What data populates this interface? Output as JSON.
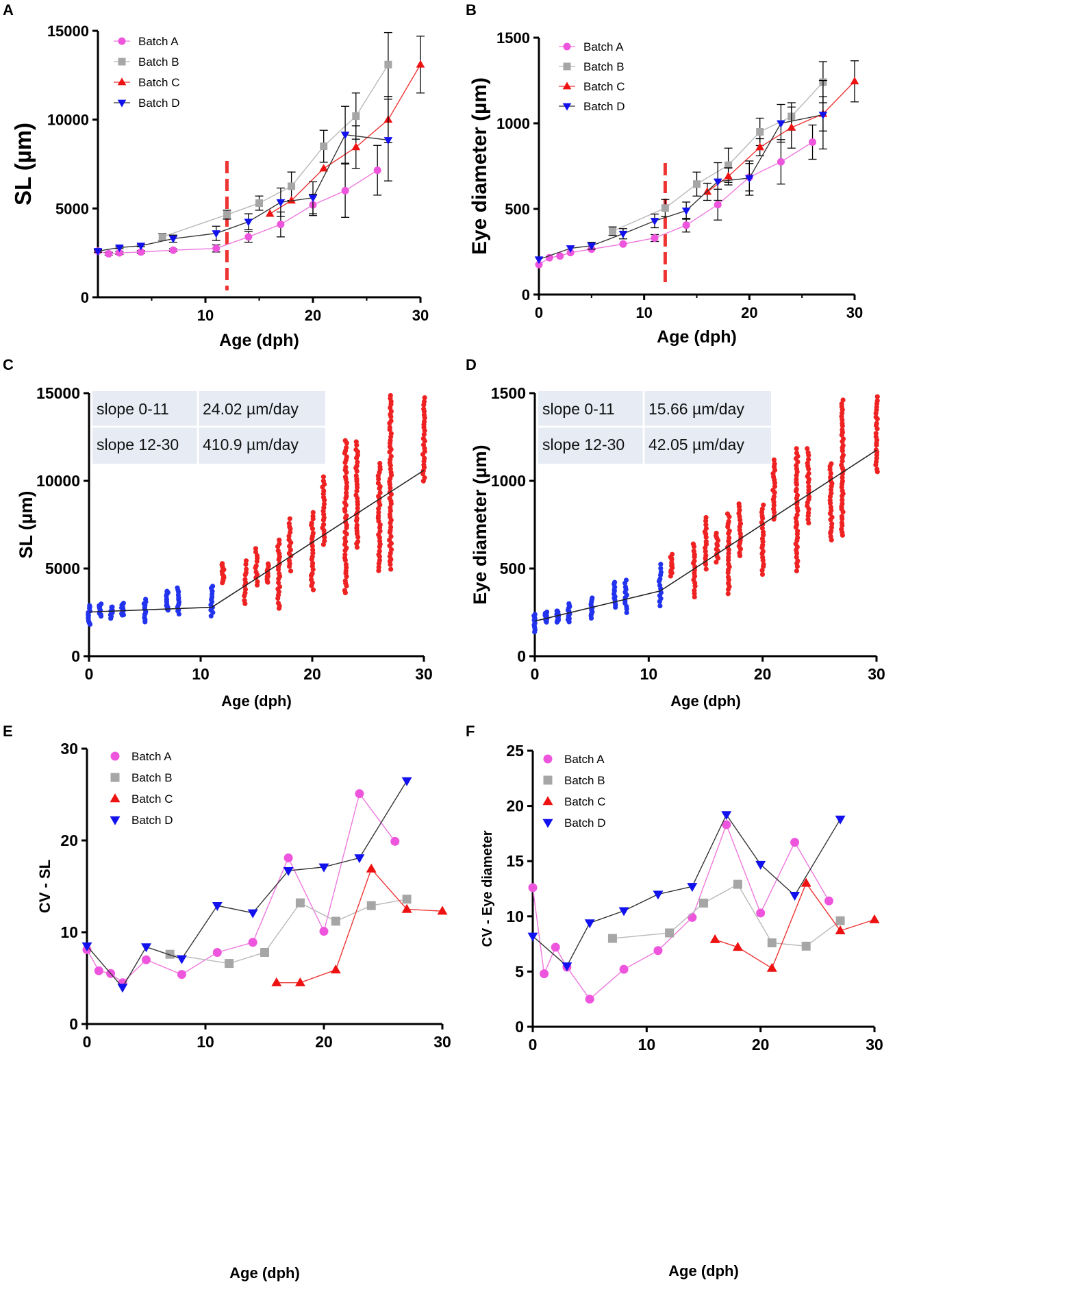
{
  "colors": {
    "a": "#ee55dd",
    "b": "#a6a6a6",
    "c": "#ee1111",
    "d": "#1111ee",
    "scatter_early": "#2233ee",
    "scatter_late": "#ee2222",
    "table_bg": "#e6ebf4",
    "vline": "#ee3333"
  },
  "legend_labels": [
    "Batch A",
    "Batch B",
    "Batch C",
    "Batch D"
  ],
  "chart_data": [
    {
      "panel": "A",
      "type": "line",
      "xlabel": "Age (dph)",
      "ylabel": "SL (µm)",
      "xlim": [
        0,
        30
      ],
      "ylim": [
        0,
        15000
      ],
      "xticks": [
        "10",
        "20",
        "30"
      ],
      "yticks": [
        "0",
        "5000",
        "10000",
        "15000"
      ],
      "vline_x": 12,
      "series": [
        {
          "name": "Batch A",
          "x": [
            0,
            1,
            2,
            4,
            7,
            11,
            14,
            17,
            20,
            23,
            26
          ],
          "y": [
            2600,
            2450,
            2500,
            2550,
            2650,
            2750,
            3400,
            4100,
            5200,
            6000,
            7150
          ],
          "err": [
            80,
            80,
            80,
            80,
            80,
            200,
            300,
            700,
            600,
            1500,
            1400
          ]
        },
        {
          "name": "Batch B",
          "x": [
            6,
            12,
            15,
            18,
            21,
            24,
            27
          ],
          "y": [
            3400,
            4650,
            5300,
            6250,
            8500,
            10200,
            13100
          ],
          "err": [
            200,
            250,
            400,
            800,
            900,
            1300,
            1800
          ]
        },
        {
          "name": "Batch C",
          "x": [
            16,
            18,
            21,
            24,
            27,
            30
          ],
          "y": [
            4700,
            5450,
            7250,
            8450,
            10000,
            13100
          ],
          "err": [
            0,
            0,
            0,
            1200,
            1300,
            1600
          ]
        },
        {
          "name": "Batch D",
          "x": [
            0,
            2,
            4,
            7,
            11,
            14,
            17,
            20,
            23,
            27
          ],
          "y": [
            2600,
            2800,
            2900,
            3300,
            3600,
            4250,
            5350,
            5600,
            9150,
            8850
          ],
          "err": [
            60,
            60,
            60,
            200,
            400,
            450,
            800,
            900,
            1600,
            2300
          ]
        }
      ]
    },
    {
      "panel": "B",
      "type": "line",
      "xlabel": "Age (dph)",
      "ylabel": "Eye diameter (µm)",
      "xlim": [
        0,
        30
      ],
      "ylim": [
        0,
        1500
      ],
      "xticks": [
        "0",
        "10",
        "20",
        "30"
      ],
      "yticks": [
        "0",
        "500",
        "1000",
        "1500"
      ],
      "vline_x": 12,
      "series": [
        {
          "name": "Batch A",
          "x": [
            0,
            1,
            2,
            3,
            5,
            8,
            11,
            14,
            17,
            20,
            23,
            26
          ],
          "y": [
            175,
            215,
            225,
            245,
            265,
            295,
            330,
            405,
            525,
            685,
            775,
            890
          ],
          "err": [
            0,
            0,
            0,
            0,
            0,
            0,
            20,
            40,
            90,
            80,
            130,
            100
          ]
        },
        {
          "name": "Batch B",
          "x": [
            7,
            12,
            15,
            18,
            21,
            24,
            27
          ],
          "y": [
            370,
            505,
            645,
            755,
            950,
            1040,
            1240
          ],
          "err": [
            25,
            50,
            70,
            100,
            80,
            80,
            120
          ]
        },
        {
          "name": "Batch C",
          "x": [
            16,
            18,
            21,
            24,
            27,
            30
          ],
          "y": [
            600,
            690,
            860,
            975,
            1055,
            1245
          ],
          "err": [
            50,
            50,
            50,
            120,
            100,
            120
          ]
        },
        {
          "name": "Batch D",
          "x": [
            0,
            3,
            5,
            8,
            11,
            14,
            17,
            20,
            23,
            27
          ],
          "y": [
            205,
            270,
            285,
            355,
            430,
            490,
            660,
            680,
            1000,
            1050
          ],
          "err": [
            0,
            0,
            20,
            30,
            40,
            50,
            110,
            100,
            110,
            200
          ]
        }
      ]
    },
    {
      "panel": "C",
      "type": "scatter",
      "xlabel": "Age (dph)",
      "ylabel": "SL (µm)",
      "xlim": [
        0,
        30
      ],
      "ylim": [
        0,
        15000
      ],
      "xticks": [
        "0",
        "10",
        "20",
        "30"
      ],
      "yticks": [
        "0",
        "5000",
        "10000",
        "15000"
      ],
      "table": [
        [
          "slope 0-11",
          "24.02 µm/day"
        ],
        [
          "slope 12-30",
          "410.9  µm/day"
        ]
      ],
      "fit": {
        "x": [
          0,
          11,
          30
        ],
        "y": [
          2520,
          2790,
          10600
        ]
      },
      "columns": [
        {
          "x": 0,
          "lo": 1800,
          "hi": 2900
        },
        {
          "x": 1,
          "lo": 2300,
          "hi": 2950
        },
        {
          "x": 2,
          "lo": 2200,
          "hi": 2850
        },
        {
          "x": 3,
          "lo": 2300,
          "hi": 3000
        },
        {
          "x": 5,
          "lo": 2000,
          "hi": 3250
        },
        {
          "x": 7,
          "lo": 2600,
          "hi": 3700
        },
        {
          "x": 8,
          "lo": 2400,
          "hi": 3900
        },
        {
          "x": 11,
          "lo": 2300,
          "hi": 4000
        },
        {
          "x": 12,
          "lo": 4200,
          "hi": 5300
        },
        {
          "x": 14,
          "lo": 3000,
          "hi": 5400
        },
        {
          "x": 15,
          "lo": 4100,
          "hi": 6100
        },
        {
          "x": 16,
          "lo": 4200,
          "hi": 5300
        },
        {
          "x": 17,
          "lo": 2700,
          "hi": 6600
        },
        {
          "x": 18,
          "lo": 4900,
          "hi": 7800
        },
        {
          "x": 20,
          "lo": 3800,
          "hi": 8200
        },
        {
          "x": 21,
          "lo": 6400,
          "hi": 10200
        },
        {
          "x": 23,
          "lo": 3600,
          "hi": 12300
        },
        {
          "x": 24,
          "lo": 6200,
          "hi": 12200
        },
        {
          "x": 26,
          "lo": 4900,
          "hi": 11000
        },
        {
          "x": 27,
          "lo": 5000,
          "hi": 14900
        },
        {
          "x": 30,
          "lo": 10000,
          "hi": 14700
        }
      ]
    },
    {
      "panel": "D",
      "type": "scatter",
      "xlabel": "Age (dph)",
      "ylabel": "Eye diameter (µm)",
      "xlim": [
        0,
        30
      ],
      "ylim": [
        0,
        1500
      ],
      "xticks": [
        "0",
        "10",
        "20",
        "30"
      ],
      "yticks": [
        "0",
        "500",
        "1000",
        "1500"
      ],
      "table": [
        [
          "slope 0-11",
          "15.66 µm/day"
        ],
        [
          "slope 12-30",
          "42.05  µm/day"
        ]
      ],
      "fit": {
        "x": [
          0,
          11,
          30
        ],
        "y": [
          200,
          372,
          1175
        ]
      },
      "columns": [
        {
          "x": 0,
          "lo": 140,
          "hi": 240
        },
        {
          "x": 1,
          "lo": 190,
          "hi": 250
        },
        {
          "x": 2,
          "lo": 190,
          "hi": 260
        },
        {
          "x": 3,
          "lo": 200,
          "hi": 300
        },
        {
          "x": 5,
          "lo": 220,
          "hi": 330
        },
        {
          "x": 7,
          "lo": 280,
          "hi": 420
        },
        {
          "x": 8,
          "lo": 250,
          "hi": 430
        },
        {
          "x": 11,
          "lo": 290,
          "hi": 520
        },
        {
          "x": 12,
          "lo": 460,
          "hi": 580
        },
        {
          "x": 14,
          "lo": 340,
          "hi": 640
        },
        {
          "x": 15,
          "lo": 500,
          "hi": 790
        },
        {
          "x": 16,
          "lo": 540,
          "hi": 700
        },
        {
          "x": 17,
          "lo": 360,
          "hi": 810
        },
        {
          "x": 18,
          "lo": 570,
          "hi": 870
        },
        {
          "x": 20,
          "lo": 470,
          "hi": 860
        },
        {
          "x": 21,
          "lo": 780,
          "hi": 1120
        },
        {
          "x": 23,
          "lo": 490,
          "hi": 1180
        },
        {
          "x": 24,
          "lo": 760,
          "hi": 1180
        },
        {
          "x": 26,
          "lo": 660,
          "hi": 1100
        },
        {
          "x": 27,
          "lo": 690,
          "hi": 1460
        },
        {
          "x": 30,
          "lo": 1050,
          "hi": 1480
        }
      ]
    },
    {
      "panel": "E",
      "type": "line",
      "xlabel": "Age (dph)",
      "ylabel": "CV - SL",
      "xlim": [
        0,
        30
      ],
      "ylim": [
        0,
        30
      ],
      "xticks": [
        "0",
        "10",
        "20",
        "30"
      ],
      "yticks": [
        "0",
        "10",
        "20",
        "30"
      ],
      "series": [
        {
          "name": "Batch A",
          "x": [
            0,
            1,
            2,
            3,
            5,
            8,
            11,
            14,
            17,
            20,
            23,
            26
          ],
          "y": [
            8.1,
            5.8,
            5.5,
            4.5,
            7.0,
            5.4,
            7.8,
            8.9,
            18.1,
            10.1,
            25.1,
            19.9
          ]
        },
        {
          "name": "Batch B",
          "x": [
            7,
            12,
            15,
            18,
            21,
            24,
            27
          ],
          "y": [
            7.6,
            6.6,
            7.8,
            13.2,
            11.2,
            12.9,
            13.6
          ]
        },
        {
          "name": "Batch C",
          "x": [
            16,
            18,
            21,
            24,
            27,
            30
          ],
          "y": [
            4.5,
            4.5,
            5.9,
            16.9,
            12.5,
            12.3
          ]
        },
        {
          "name": "Batch D",
          "x": [
            0,
            3,
            5,
            8,
            11,
            14,
            17,
            20,
            23,
            27
          ],
          "y": [
            8.5,
            4.0,
            8.4,
            7.1,
            12.9,
            12.1,
            16.7,
            17.1,
            18.1,
            26.5
          ]
        }
      ]
    },
    {
      "panel": "F",
      "type": "line",
      "xlabel": "Age (dph)",
      "ylabel": "CV - Eye diameter",
      "xlim": [
        0,
        30
      ],
      "ylim": [
        0,
        25
      ],
      "xticks": [
        "0",
        "10",
        "20",
        "30"
      ],
      "yticks": [
        "0",
        "5",
        "10",
        "15",
        "20",
        "25"
      ],
      "series": [
        {
          "name": "Batch A",
          "x": [
            0,
            1,
            2,
            3,
            5,
            8,
            11,
            14,
            17,
            20,
            23,
            26
          ],
          "y": [
            12.6,
            4.8,
            7.2,
            5.4,
            2.5,
            5.2,
            6.9,
            9.9,
            18.3,
            10.3,
            16.7,
            11.4
          ]
        },
        {
          "name": "Batch B",
          "x": [
            7,
            12,
            15,
            18,
            21,
            24,
            27
          ],
          "y": [
            8.0,
            8.5,
            11.2,
            12.9,
            7.6,
            7.3,
            9.6
          ]
        },
        {
          "name": "Batch C",
          "x": [
            16,
            18,
            21,
            24,
            27,
            30
          ],
          "y": [
            7.9,
            7.2,
            5.3,
            13.0,
            8.7,
            9.7
          ]
        },
        {
          "name": "Batch D",
          "x": [
            0,
            3,
            5,
            8,
            11,
            14,
            17,
            20,
            23,
            27
          ],
          "y": [
            8.2,
            5.5,
            9.4,
            10.5,
            12.0,
            12.7,
            19.2,
            14.7,
            11.9,
            18.8
          ]
        }
      ]
    }
  ]
}
